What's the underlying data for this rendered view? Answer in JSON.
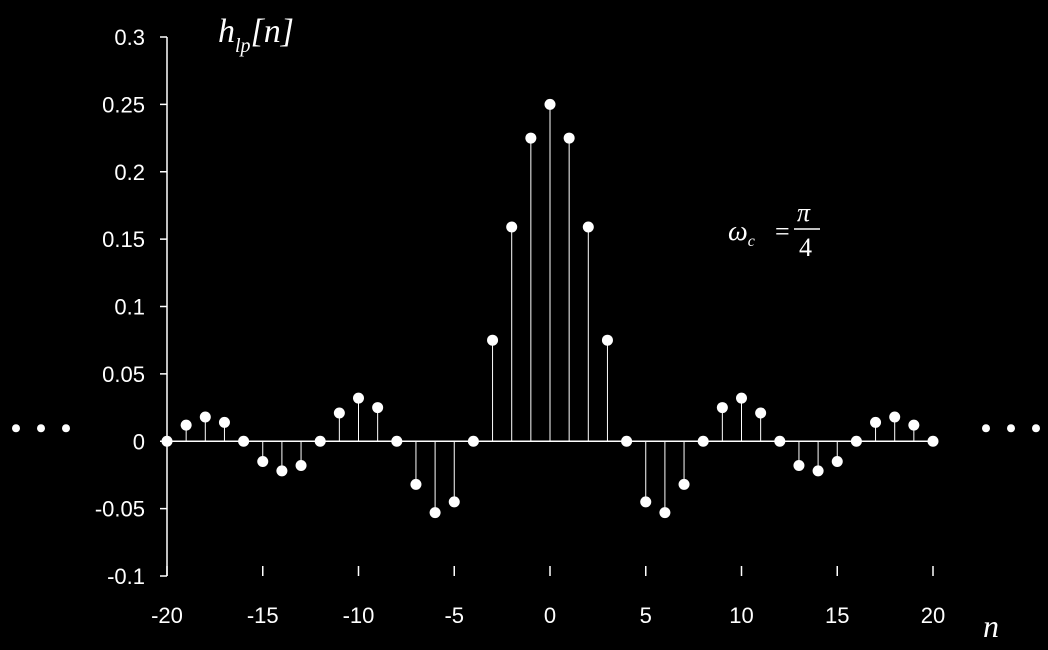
{
  "chart_data": {
    "type": "stem",
    "title": "h_lp[n]",
    "ylabel_main": "h",
    "ylabel_sub": "lp",
    "ylabel_arg": "[n]",
    "xlabel": "n",
    "annotation": {
      "lhs": "ω",
      "sub": "c",
      "eq": "=",
      "num": "π",
      "den": "4"
    },
    "xlim": [
      -20,
      20
    ],
    "ylim": [
      -0.1,
      0.3
    ],
    "xticks": [
      -20,
      -15,
      -10,
      -5,
      0,
      5,
      10,
      15,
      20
    ],
    "xtick_labels": [
      "-20",
      "-15",
      "-10",
      "-5",
      "0",
      "5",
      "10",
      "15",
      "20"
    ],
    "yticks": [
      -0.1,
      -0.05,
      0,
      0.05,
      0.1,
      0.15,
      0.2,
      0.25,
      0.3
    ],
    "ytick_labels": [
      "-0.1",
      "-0.05",
      "0",
      "0.05",
      "0.1",
      "0.15",
      "0.2",
      "0.25",
      "0.3"
    ],
    "x": [
      -20,
      -19,
      -18,
      -17,
      -16,
      -15,
      -14,
      -13,
      -12,
      -11,
      -10,
      -9,
      -8,
      -7,
      -6,
      -5,
      -4,
      -3,
      -2,
      -1,
      0,
      1,
      2,
      3,
      4,
      5,
      6,
      7,
      8,
      9,
      10,
      11,
      12,
      13,
      14,
      15,
      16,
      17,
      18,
      19,
      20
    ],
    "values": [
      0,
      0.012,
      0.018,
      0.014,
      0,
      -0.015,
      -0.022,
      -0.018,
      0,
      0.021,
      0.032,
      0.025,
      0,
      -0.032,
      -0.053,
      -0.045,
      0,
      0.075,
      0.159,
      0.225,
      0.25,
      0.225,
      0.159,
      0.075,
      0,
      -0.045,
      -0.053,
      -0.032,
      0,
      0.025,
      0.032,
      0.021,
      0,
      -0.018,
      -0.022,
      -0.015,
      0,
      0.014,
      0.018,
      0.012,
      0
    ],
    "continuation": "dots",
    "colors": {
      "background": "#000000",
      "foreground": "#ffffff"
    }
  }
}
